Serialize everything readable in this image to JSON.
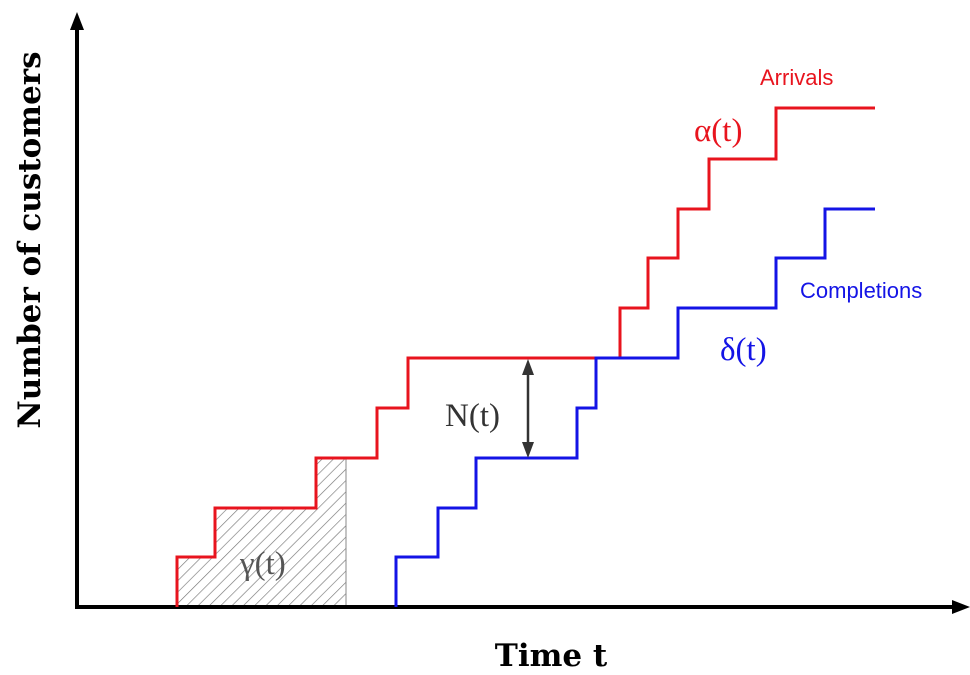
{
  "axes": {
    "x_label": "Time t",
    "y_label": "Number of customers"
  },
  "arrivals": {
    "label": "Arrivals",
    "function_label": "α(t)",
    "color": "#e8141e"
  },
  "completions": {
    "label": "Completions",
    "function_label": "δ(t)",
    "color": "#1414e6"
  },
  "queue_length": {
    "label": "N(t)",
    "color": "#333333"
  },
  "area": {
    "label": "γ(t)",
    "color": "#555555"
  }
}
